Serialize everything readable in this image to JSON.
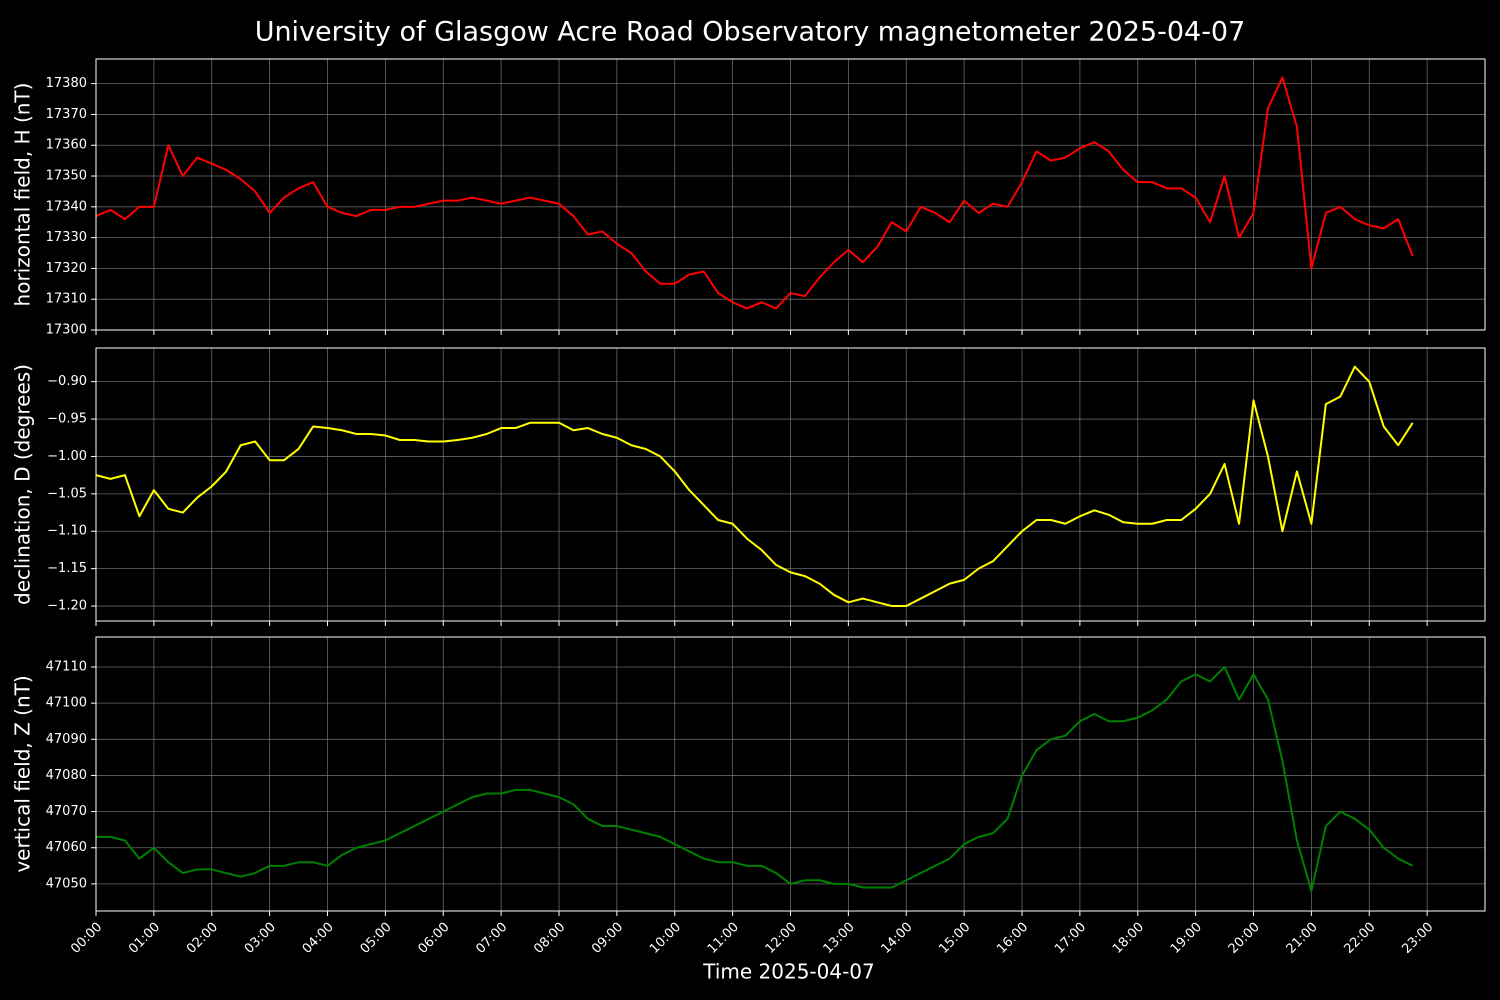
{
  "chart_data": [
    {
      "type": "line",
      "title": "University of Glasgow Acre Road Observatory magnetometer 2025-04-07",
      "ylabel": "horizontal field, H (nT)",
      "color": "#ff0000",
      "grid": true,
      "x": [
        "00:00",
        "00:15",
        "00:30",
        "00:45",
        "01:00",
        "01:15",
        "01:30",
        "01:45",
        "02:00",
        "02:15",
        "02:30",
        "02:45",
        "03:00",
        "03:15",
        "03:30",
        "03:45",
        "04:00",
        "04:15",
        "04:30",
        "04:45",
        "05:00",
        "05:15",
        "05:30",
        "05:45",
        "06:00",
        "06:15",
        "06:30",
        "06:45",
        "07:00",
        "07:15",
        "07:30",
        "07:45",
        "08:00",
        "08:15",
        "08:30",
        "08:45",
        "09:00",
        "09:15",
        "09:30",
        "09:45",
        "10:00",
        "10:15",
        "10:30",
        "10:45",
        "11:00",
        "11:15",
        "11:30",
        "11:45",
        "12:00",
        "12:15",
        "12:30",
        "12:45",
        "13:00",
        "13:15",
        "13:30",
        "13:45",
        "14:00",
        "14:15",
        "14:30",
        "14:45",
        "15:00",
        "15:15",
        "15:30",
        "15:45",
        "16:00",
        "16:15",
        "16:30",
        "16:45",
        "17:00",
        "17:15",
        "17:30",
        "17:45",
        "18:00",
        "18:15",
        "18:30",
        "18:45",
        "19:00",
        "19:15",
        "19:30",
        "19:45",
        "20:00",
        "20:15",
        "20:30",
        "20:45",
        "21:00",
        "21:15",
        "21:30",
        "21:45",
        "22:00",
        "22:15",
        "22:30",
        "22:45"
      ],
      "values": [
        17337,
        17339,
        17336,
        17340,
        17340,
        17360,
        17350,
        17356,
        17354,
        17352,
        17349,
        17345,
        17338,
        17343,
        17346,
        17348,
        17340,
        17338,
        17337,
        17339,
        17339,
        17340,
        17340,
        17341,
        17342,
        17342,
        17343,
        17342,
        17341,
        17342,
        17343,
        17342,
        17341,
        17337,
        17331,
        17332,
        17328,
        17325,
        17319,
        17315,
        17315,
        17318,
        17319,
        17312,
        17309,
        17307,
        17309,
        17307,
        17312,
        17311,
        17317,
        17322,
        17326,
        17322,
        17327,
        17335,
        17332,
        17340,
        17338,
        17335,
        17342,
        17338,
        17341,
        17340,
        17348,
        17358,
        17355,
        17356,
        17359,
        17361,
        17358,
        17352,
        17348,
        17348,
        17346,
        17346,
        17343,
        17335,
        17350,
        17330,
        17338,
        17372,
        17382,
        17366,
        17320,
        17338,
        17340,
        17336,
        17334,
        17333,
        17336,
        17324
      ],
      "xlim": [
        "00:00",
        "24:00"
      ],
      "xticks": [
        "00:00",
        "01:00",
        "02:00",
        "03:00",
        "04:00",
        "05:00",
        "06:00",
        "07:00",
        "08:00",
        "09:00",
        "10:00",
        "11:00",
        "12:00",
        "13:00",
        "14:00",
        "15:00",
        "16:00",
        "17:00",
        "18:00",
        "19:00",
        "20:00",
        "21:00",
        "22:00",
        "23:00"
      ],
      "ylim": [
        17300,
        17388
      ],
      "yticks": [
        17300,
        17310,
        17320,
        17330,
        17340,
        17350,
        17360,
        17370,
        17380
      ]
    },
    {
      "type": "line",
      "ylabel": "declination, D (degrees)",
      "color": "#ffff00",
      "grid": true,
      "x": [
        "00:00",
        "00:15",
        "00:30",
        "00:45",
        "01:00",
        "01:15",
        "01:30",
        "01:45",
        "02:00",
        "02:15",
        "02:30",
        "02:45",
        "03:00",
        "03:15",
        "03:30",
        "03:45",
        "04:00",
        "04:15",
        "04:30",
        "04:45",
        "05:00",
        "05:15",
        "05:30",
        "05:45",
        "06:00",
        "06:15",
        "06:30",
        "06:45",
        "07:00",
        "07:15",
        "07:30",
        "07:45",
        "08:00",
        "08:15",
        "08:30",
        "08:45",
        "09:00",
        "09:15",
        "09:30",
        "09:45",
        "10:00",
        "10:15",
        "10:30",
        "10:45",
        "11:00",
        "11:15",
        "11:30",
        "11:45",
        "12:00",
        "12:15",
        "12:30",
        "12:45",
        "13:00",
        "13:15",
        "13:30",
        "13:45",
        "14:00",
        "14:15",
        "14:30",
        "14:45",
        "15:00",
        "15:15",
        "15:30",
        "15:45",
        "16:00",
        "16:15",
        "16:30",
        "16:45",
        "17:00",
        "17:15",
        "17:30",
        "17:45",
        "18:00",
        "18:15",
        "18:30",
        "18:45",
        "19:00",
        "19:15",
        "19:30",
        "19:45",
        "20:00",
        "20:15",
        "20:30",
        "20:45",
        "21:00",
        "21:15",
        "21:30",
        "21:45",
        "22:00",
        "22:15",
        "22:30",
        "22:45"
      ],
      "values": [
        -1.025,
        -1.03,
        -1.025,
        -1.08,
        -1.045,
        -1.07,
        -1.075,
        -1.055,
        -1.04,
        -1.02,
        -0.985,
        -0.98,
        -1.005,
        -1.005,
        -0.99,
        -0.96,
        -0.962,
        -0.965,
        -0.97,
        -0.97,
        -0.972,
        -0.978,
        -0.978,
        -0.98,
        -0.98,
        -0.978,
        -0.975,
        -0.97,
        -0.962,
        -0.962,
        -0.955,
        -0.955,
        -0.955,
        -0.965,
        -0.962,
        -0.97,
        -0.975,
        -0.985,
        -0.99,
        -1.0,
        -1.02,
        -1.045,
        -1.065,
        -1.085,
        -1.09,
        -1.11,
        -1.125,
        -1.145,
        -1.155,
        -1.16,
        -1.17,
        -1.185,
        -1.195,
        -1.19,
        -1.195,
        -1.2,
        -1.2,
        -1.19,
        -1.18,
        -1.17,
        -1.165,
        -1.15,
        -1.14,
        -1.12,
        -1.1,
        -1.085,
        -1.085,
        -1.09,
        -1.08,
        -1.072,
        -1.078,
        -1.088,
        -1.09,
        -1.09,
        -1.085,
        -1.085,
        -1.07,
        -1.05,
        -1.01,
        -1.09,
        -0.925,
        -1.0,
        -1.1,
        -1.02,
        -1.09,
        -0.93,
        -0.92,
        -0.88,
        -0.9,
        -0.96,
        -0.985,
        -0.955
      ],
      "xlim": [
        "00:00",
        "24:00"
      ],
      "xticks": [
        "00:00",
        "01:00",
        "02:00",
        "03:00",
        "04:00",
        "05:00",
        "06:00",
        "07:00",
        "08:00",
        "09:00",
        "10:00",
        "11:00",
        "12:00",
        "13:00",
        "14:00",
        "15:00",
        "16:00",
        "17:00",
        "18:00",
        "19:00",
        "20:00",
        "21:00",
        "22:00",
        "23:00"
      ],
      "ylim": [
        -1.22,
        -0.855
      ],
      "yticks": [
        {
          "value": -1.2,
          "label": "−1.20"
        },
        {
          "value": -1.15,
          "label": "−1.15"
        },
        {
          "value": -1.1,
          "label": "−1.10"
        },
        {
          "value": -1.05,
          "label": "−1.05"
        },
        {
          "value": -1.0,
          "label": "−1.00"
        },
        {
          "value": -0.95,
          "label": "−0.95"
        },
        {
          "value": -0.9,
          "label": "−0.90"
        }
      ]
    },
    {
      "type": "line",
      "ylabel": "vertical field, Z (nT)",
      "xlabel": "Time 2025-04-07",
      "color": "#008000",
      "grid": true,
      "x": [
        "00:00",
        "00:15",
        "00:30",
        "00:45",
        "01:00",
        "01:15",
        "01:30",
        "01:45",
        "02:00",
        "02:15",
        "02:30",
        "02:45",
        "03:00",
        "03:15",
        "03:30",
        "03:45",
        "04:00",
        "04:15",
        "04:30",
        "04:45",
        "05:00",
        "05:15",
        "05:30",
        "05:45",
        "06:00",
        "06:15",
        "06:30",
        "06:45",
        "07:00",
        "07:15",
        "07:30",
        "07:45",
        "08:00",
        "08:15",
        "08:30",
        "08:45",
        "09:00",
        "09:15",
        "09:30",
        "09:45",
        "10:00",
        "10:15",
        "10:30",
        "10:45",
        "11:00",
        "11:15",
        "11:30",
        "11:45",
        "12:00",
        "12:15",
        "12:30",
        "12:45",
        "13:00",
        "13:15",
        "13:30",
        "13:45",
        "14:00",
        "14:15",
        "14:30",
        "14:45",
        "15:00",
        "15:15",
        "15:30",
        "15:45",
        "16:00",
        "16:15",
        "16:30",
        "16:45",
        "17:00",
        "17:15",
        "17:30",
        "17:45",
        "18:00",
        "18:15",
        "18:30",
        "18:45",
        "19:00",
        "19:15",
        "19:30",
        "19:45",
        "20:00",
        "20:15",
        "20:30",
        "20:45",
        "21:00",
        "21:15",
        "21:30",
        "21:45",
        "22:00",
        "22:15",
        "22:30",
        "22:45"
      ],
      "values": [
        47063,
        47063,
        47062,
        47057,
        47060,
        47056,
        47053,
        47054,
        47054,
        47053,
        47052,
        47053,
        47055,
        47055,
        47056,
        47056,
        47055,
        47058,
        47060,
        47061,
        47062,
        47064,
        47066,
        47068,
        47070,
        47072,
        47074,
        47075,
        47075,
        47076,
        47076,
        47075,
        47074,
        47072,
        47068,
        47066,
        47066,
        47065,
        47064,
        47063,
        47061,
        47059,
        47057,
        47056,
        47056,
        47055,
        47055,
        47053,
        47050,
        47051,
        47051,
        47050,
        47050,
        47049,
        47049,
        47049,
        47051,
        47053,
        47055,
        47057,
        47061,
        47063,
        47064,
        47068,
        47080,
        47087,
        47090,
        47091,
        47095,
        47097,
        47095,
        47095,
        47096,
        47098,
        47101,
        47106,
        47108,
        47106,
        47110,
        47101,
        47108,
        47101,
        47084,
        47062,
        47048,
        47066,
        47070,
        47068,
        47065,
        47060,
        47057,
        47055
      ],
      "xlim": [
        "00:00",
        "24:00"
      ],
      "xticks": [
        "00:00",
        "01:00",
        "02:00",
        "03:00",
        "04:00",
        "05:00",
        "06:00",
        "07:00",
        "08:00",
        "09:00",
        "10:00",
        "11:00",
        "12:00",
        "13:00",
        "14:00",
        "15:00",
        "16:00",
        "17:00",
        "18:00",
        "19:00",
        "20:00",
        "21:00",
        "22:00",
        "23:00"
      ],
      "ylim": [
        47042.5,
        47118.3
      ],
      "yticks": [
        47050,
        47060,
        47070,
        47080,
        47090,
        47100,
        47110
      ]
    }
  ]
}
